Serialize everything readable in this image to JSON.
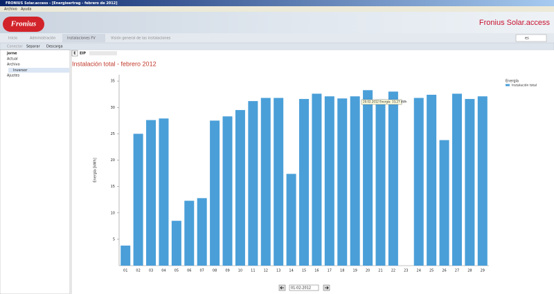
{
  "window": {
    "title": "FRONIUS Solar.access - [Energieertrag - febrero de 2012]"
  },
  "menu": [
    "Archivo",
    "Ayuda"
  ],
  "banner": {
    "logo": "Fronius",
    "product": "Fronius Solar.access"
  },
  "tabs": [
    "Inicio",
    "Administración",
    "Instalaciones FV",
    "Visión general de las instalaciones"
  ],
  "language": "es",
  "toolbar": [
    "Conectar",
    "Separar",
    "Descarga"
  ],
  "tree": [
    "jorne",
    "Actual",
    "Archivo",
    "Inversor",
    "Ajustes"
  ],
  "chart_toolbar": [
    "E",
    "EIP"
  ],
  "tooltip": "20.02.2012 Energía: 33,27 kWh",
  "date": "01-02-2012",
  "chart_data": {
    "type": "bar",
    "title": "Instalación total - febrero 2012",
    "y_label": "Energía [kWh]",
    "legend_title": "Energía",
    "legend": "right",
    "grid": false,
    "categories": [
      "01",
      "02",
      "03",
      "04",
      "05",
      "06",
      "07",
      "08",
      "09",
      "10",
      "11",
      "12",
      "13",
      "14",
      "15",
      "16",
      "17",
      "18",
      "19",
      "20",
      "21",
      "22",
      "23",
      "24",
      "25",
      "26",
      "27",
      "28",
      "29"
    ],
    "series": [
      {
        "name": "Instalación total",
        "color": "#4a9fd8",
        "values": [
          3.8,
          25.0,
          27.6,
          27.9,
          8.5,
          12.3,
          12.8,
          27.5,
          28.3,
          29.5,
          31.2,
          31.8,
          31.8,
          17.4,
          31.6,
          32.6,
          32.1,
          31.7,
          32.1,
          33.27,
          31.5,
          33.0,
          0,
          31.8,
          32.4,
          23.8,
          32.6,
          31.6,
          32.1
        ]
      }
    ],
    "ylim": [
      0,
      36.2
    ],
    "yticks": [
      5,
      10,
      15,
      20,
      25,
      30,
      35
    ]
  }
}
